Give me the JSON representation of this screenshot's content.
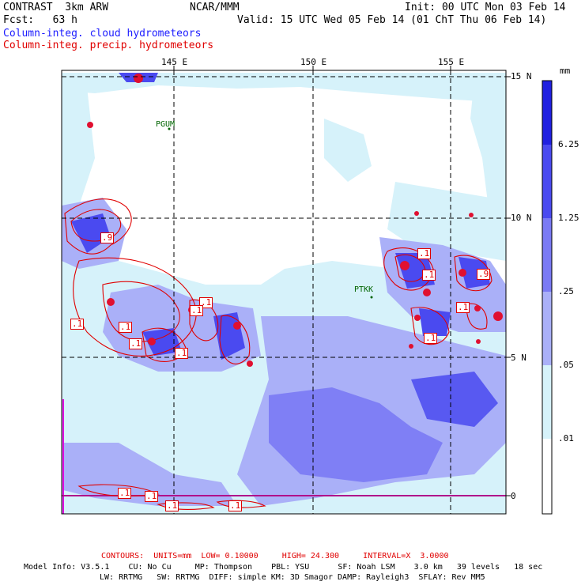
{
  "header": {
    "model_title": "CONTRAST  3km ARW",
    "center": "NCAR/MMM",
    "init": "Init: 00 UTC Mon 03 Feb 14",
    "fcst": "Fcst:   63 h",
    "valid": "Valid: 15 UTC Wed 05 Feb 14 (01 ChT Thu 06 Feb 14)",
    "field_cloud": "Column-integ. cloud hydrometeors",
    "field_precip": "Column-integ. precip. hydrometeors"
  },
  "map": {
    "lon_labels": [
      "145 E",
      "150 E",
      "155 E"
    ],
    "lat_labels": [
      "15 N",
      "10 N",
      "5 N",
      "0"
    ],
    "stations": [
      "PGUM",
      "PTKK"
    ],
    "contour_labels": [
      ".9",
      ".1",
      ".1",
      ".1",
      ".1",
      ".1",
      ".1",
      ".1",
      ".1",
      ".9",
      ".1",
      ".1",
      ".1",
      ".1",
      ".1",
      ".1"
    ]
  },
  "colorbar": {
    "unit": "mm",
    "levels": [
      "6.25",
      "1.25",
      ".25",
      ".05",
      ".01"
    ],
    "colors": [
      "#2020e0",
      "#4a4af0",
      "#7a7af4",
      "#aab0f8",
      "#d6f2fa",
      "#ffffff"
    ]
  },
  "footer": {
    "contours": "CONTOURS:  UNITS=mm  LOW= 0.10000     HIGH= 24.300     INTERVAL=X  3.0000",
    "model_info_1": "Model Info: V3.5.1    CU: No Cu     MP: Thompson    PBL: YSU      SF: Noah LSM    3.0 km   39 levels   18 sec",
    "model_info_2": "LW: RRTMG   SW: RRTMG  DIFF: simple KM: 3D Smagor DAMP: Rayleigh3  SFLAY: Rev MM5"
  }
}
